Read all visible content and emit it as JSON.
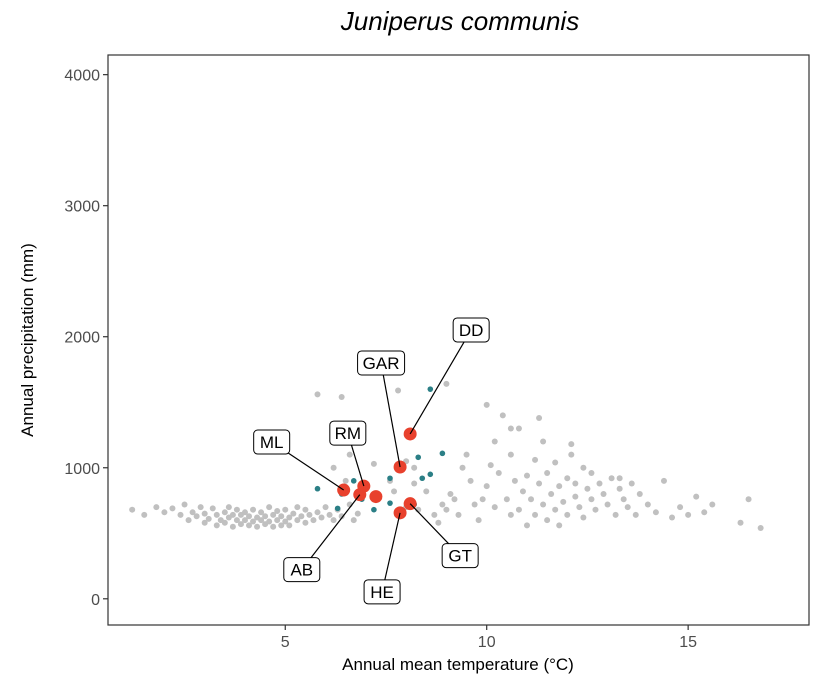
{
  "chart_data": {
    "type": "scatter",
    "title": "Juniperus communis",
    "xlabel": "Annual mean temperature (°C)",
    "ylabel": "Annual precipitation (mm)",
    "xlim": [
      0.6,
      18.0
    ],
    "ylim": [
      -200,
      4150
    ],
    "xticks": [
      5,
      10,
      15
    ],
    "yticks": [
      0,
      1000,
      2000,
      3000,
      4000
    ],
    "grid": false,
    "colors": {
      "background": "#c0c0c0",
      "teal": "#2b7f86",
      "sites": "#e8412d",
      "frame": "#333333"
    },
    "series": [
      {
        "role": "background",
        "color": "#c0c0c0",
        "points": [
          [
            1.2,
            680
          ],
          [
            1.5,
            640
          ],
          [
            1.8,
            700
          ],
          [
            2.0,
            660
          ],
          [
            2.2,
            690
          ],
          [
            2.4,
            640
          ],
          [
            2.5,
            720
          ],
          [
            2.6,
            600
          ],
          [
            2.7,
            660
          ],
          [
            2.8,
            630
          ],
          [
            2.9,
            700
          ],
          [
            3.0,
            580
          ],
          [
            3.0,
            650
          ],
          [
            3.1,
            610
          ],
          [
            3.2,
            690
          ],
          [
            3.3,
            560
          ],
          [
            3.3,
            640
          ],
          [
            3.4,
            600
          ],
          [
            3.5,
            660
          ],
          [
            3.5,
            580
          ],
          [
            3.6,
            620
          ],
          [
            3.6,
            700
          ],
          [
            3.7,
            550
          ],
          [
            3.7,
            640
          ],
          [
            3.8,
            600
          ],
          [
            3.8,
            680
          ],
          [
            3.9,
            570
          ],
          [
            3.9,
            640
          ],
          [
            4.0,
            600
          ],
          [
            4.0,
            660
          ],
          [
            4.1,
            560
          ],
          [
            4.1,
            630
          ],
          [
            4.2,
            590
          ],
          [
            4.2,
            680
          ],
          [
            4.3,
            550
          ],
          [
            4.3,
            620
          ],
          [
            4.4,
            600
          ],
          [
            4.4,
            660
          ],
          [
            4.5,
            570
          ],
          [
            4.5,
            630
          ],
          [
            4.6,
            590
          ],
          [
            4.6,
            700
          ],
          [
            4.7,
            550
          ],
          [
            4.7,
            640
          ],
          [
            4.8,
            600
          ],
          [
            4.8,
            670
          ],
          [
            4.9,
            560
          ],
          [
            4.9,
            630
          ],
          [
            5.0,
            590
          ],
          [
            5.0,
            680
          ],
          [
            5.1,
            620
          ],
          [
            5.1,
            560
          ],
          [
            5.2,
            650
          ],
          [
            5.3,
            600
          ],
          [
            5.3,
            700
          ],
          [
            5.4,
            630
          ],
          [
            5.5,
            580
          ],
          [
            5.5,
            680
          ],
          [
            5.6,
            640
          ],
          [
            5.7,
            600
          ],
          [
            5.8,
            660
          ],
          [
            5.9,
            620
          ],
          [
            6.0,
            700
          ],
          [
            6.1,
            640
          ],
          [
            6.2,
            600
          ],
          [
            6.3,
            680
          ],
          [
            6.4,
            630
          ],
          [
            6.6,
            720
          ],
          [
            6.7,
            600
          ],
          [
            6.8,
            650
          ],
          [
            5.8,
            1560
          ],
          [
            6.5,
            900
          ],
          [
            6.2,
            1000
          ],
          [
            6.6,
            1100
          ],
          [
            7.2,
            1030
          ],
          [
            7.6,
            900
          ],
          [
            8.0,
            1050
          ],
          [
            6.4,
            1540
          ],
          [
            7.8,
            1590
          ],
          [
            7.7,
            820
          ],
          [
            8.2,
            880
          ],
          [
            8.0,
            700
          ],
          [
            8.3,
            680
          ],
          [
            8.5,
            820
          ],
          [
            8.2,
            1000
          ],
          [
            8.7,
            640
          ],
          [
            8.8,
            580
          ],
          [
            8.9,
            720
          ],
          [
            9.0,
            680
          ],
          [
            9.1,
            800
          ],
          [
            9.2,
            760
          ],
          [
            9.3,
            640
          ],
          [
            9.4,
            1000
          ],
          [
            9.5,
            1100
          ],
          [
            9.0,
            1640
          ],
          [
            9.7,
            720
          ],
          [
            9.6,
            900
          ],
          [
            9.8,
            600
          ],
          [
            9.9,
            760
          ],
          [
            10.0,
            1480
          ],
          [
            10.0,
            860
          ],
          [
            10.1,
            1020
          ],
          [
            10.2,
            700
          ],
          [
            10.2,
            1200
          ],
          [
            10.3,
            960
          ],
          [
            10.4,
            1400
          ],
          [
            10.5,
            760
          ],
          [
            10.6,
            640
          ],
          [
            10.6,
            1100
          ],
          [
            10.7,
            900
          ],
          [
            10.8,
            680
          ],
          [
            10.8,
            1300
          ],
          [
            10.9,
            820
          ],
          [
            11.0,
            940
          ],
          [
            11.0,
            560
          ],
          [
            11.1,
            760
          ],
          [
            11.2,
            1060
          ],
          [
            11.2,
            640
          ],
          [
            11.3,
            880
          ],
          [
            11.4,
            720
          ],
          [
            11.4,
            1200
          ],
          [
            11.5,
            600
          ],
          [
            11.5,
            960
          ],
          [
            11.6,
            800
          ],
          [
            11.7,
            680
          ],
          [
            11.7,
            1040
          ],
          [
            11.8,
            860
          ],
          [
            11.8,
            560
          ],
          [
            11.9,
            740
          ],
          [
            12.0,
            920
          ],
          [
            12.0,
            640
          ],
          [
            12.1,
            1100
          ],
          [
            12.2,
            780
          ],
          [
            12.2,
            880
          ],
          [
            12.3,
            700
          ],
          [
            12.4,
            1000
          ],
          [
            12.4,
            620
          ],
          [
            12.5,
            840
          ],
          [
            12.6,
            760
          ],
          [
            12.6,
            960
          ],
          [
            12.7,
            680
          ],
          [
            12.8,
            880
          ],
          [
            12.9,
            800
          ],
          [
            13.0,
            720
          ],
          [
            13.1,
            920
          ],
          [
            13.2,
            640
          ],
          [
            13.3,
            840
          ],
          [
            13.4,
            760
          ],
          [
            13.5,
            700
          ],
          [
            13.6,
            880
          ],
          [
            13.7,
            640
          ],
          [
            13.8,
            800
          ],
          [
            14.0,
            720
          ],
          [
            14.2,
            660
          ],
          [
            14.4,
            900
          ],
          [
            14.6,
            620
          ],
          [
            14.8,
            700
          ],
          [
            15.0,
            640
          ],
          [
            15.2,
            780
          ],
          [
            15.4,
            660
          ],
          [
            15.6,
            720
          ],
          [
            16.3,
            580
          ],
          [
            16.5,
            760
          ],
          [
            16.8,
            540
          ],
          [
            12.1,
            1180
          ],
          [
            11.3,
            1380
          ],
          [
            10.6,
            1300
          ],
          [
            13.3,
            920
          ]
        ]
      },
      {
        "role": "highlight",
        "color": "#2b7f86",
        "points": [
          [
            5.8,
            840
          ],
          [
            6.4,
            800
          ],
          [
            6.7,
            900
          ],
          [
            6.9,
            760
          ],
          [
            7.2,
            680
          ],
          [
            7.6,
            920
          ],
          [
            8.3,
            1080
          ],
          [
            8.4,
            920
          ],
          [
            8.6,
            950
          ],
          [
            8.6,
            1600
          ],
          [
            8.9,
            1110
          ],
          [
            7.6,
            730
          ],
          [
            8.2,
            720
          ],
          [
            6.3,
            690
          ]
        ]
      },
      {
        "role": "sites",
        "color": "#e8412d",
        "points": [
          {
            "label": "DD",
            "x": 8.1,
            "y": 1258
          },
          {
            "label": "GAR",
            "x": 7.85,
            "y": 1006
          },
          {
            "label": "ML",
            "x": 6.45,
            "y": 830
          },
          {
            "label": "RM",
            "x": 6.95,
            "y": 860
          },
          {
            "label": "AB",
            "x": 6.85,
            "y": 795
          },
          {
            "label": "HE",
            "x": 7.85,
            "y": 656
          },
          {
            "label": "GT",
            "x": 8.1,
            "y": 726
          },
          {
            "label": "",
            "x": 7.25,
            "y": 780
          }
        ]
      }
    ]
  }
}
